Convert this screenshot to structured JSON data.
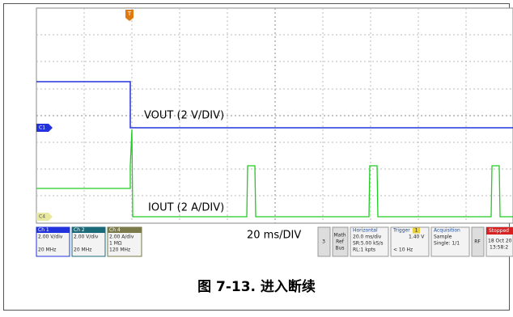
{
  "screen": {
    "trigger_marker": "T",
    "channel_markers": [
      "C1",
      "C4"
    ],
    "labels": {
      "vout": "VOUT (2 V/DIV)",
      "iout": "IOUT (2 A/DIV)",
      "timebase": "20 ms/DIV"
    },
    "status": {
      "ch1": {
        "name": "Ch 1",
        "lines": [
          "2.00 V/div",
          "20 MHz"
        ]
      },
      "ch2": {
        "name": "Ch 2",
        "lines": [
          "2.00 V/div",
          "20 MHz"
        ]
      },
      "ch4": {
        "name": "Ch 4",
        "lines": [
          "2.00 A/div",
          "1 MΩ",
          "120 MHz"
        ]
      },
      "math_count": "3",
      "math": [
        "Math",
        "Ref",
        "Bus"
      ],
      "horizontal": {
        "title": "Horizontal",
        "lines": [
          "20.0 ms/div",
          "SR:5.00 kS/s",
          "RL:1 kpts"
        ]
      },
      "trigger": {
        "title": "Trigger",
        "source": "1",
        "lines": [
          "1.40 V",
          "< 10 Hz"
        ]
      },
      "acquisition": {
        "title": "Acquisition",
        "lines": [
          "Sample",
          "Single: 1/1"
        ]
      },
      "rf": "RF",
      "stopped": {
        "title": "Stopped",
        "lines": [
          "18 Oct 20",
          "13:58:2"
        ]
      }
    }
  },
  "caption": "图 7-13. 进入断续"
}
